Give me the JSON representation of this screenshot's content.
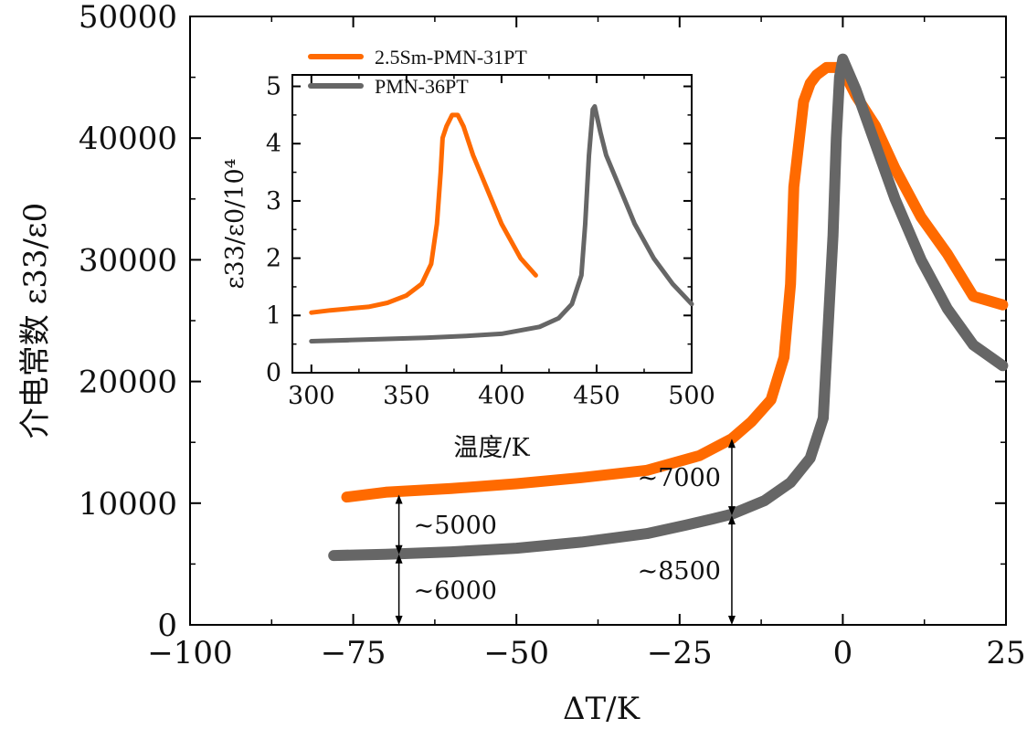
{
  "colors": {
    "sm": "#ff6a00",
    "pmn": "#666666",
    "axis": "#000000"
  },
  "chart_data": [
    {
      "id": "main",
      "type": "line",
      "xlabel": "ΔT/K",
      "ylabel": "介电常数 ε33/ε0",
      "xlim": [
        -100,
        25
      ],
      "ylim": [
        0,
        50000
      ],
      "xticks": [
        -100,
        -75,
        -50,
        -25,
        0,
        25
      ],
      "xtick_labels": [
        "−100",
        "−75",
        "−50",
        "−25",
        "0",
        "25"
      ],
      "yticks": [
        0,
        10000,
        20000,
        30000,
        40000,
        50000
      ],
      "ytick_labels": [
        "0",
        "10000",
        "20000",
        "30000",
        "40000",
        "50000"
      ],
      "series": [
        {
          "name": "2.5Sm-PMN-31PT",
          "color": "#ff6a00",
          "x": [
            -76,
            -70,
            -60,
            -50,
            -40,
            -30,
            -22,
            -17,
            -14,
            -11,
            -9,
            -8,
            -7.5,
            -6,
            -5,
            -4,
            -2.5,
            -1,
            0,
            2,
            5,
            8,
            12,
            16,
            20,
            24.5
          ],
          "y": [
            10500,
            10900,
            11200,
            11600,
            12100,
            12700,
            13900,
            15300,
            16700,
            18500,
            22000,
            28000,
            36000,
            43000,
            44500,
            45200,
            45800,
            45800,
            45600,
            43500,
            41000,
            37500,
            33500,
            30500,
            27000,
            26300
          ]
        },
        {
          "name": "PMN-36PT",
          "color": "#666666",
          "x": [
            -78,
            -70,
            -60,
            -50,
            -40,
            -30,
            -24,
            -20,
            -17,
            -12,
            -8,
            -5,
            -3,
            -1.5,
            -1,
            -0.5,
            0,
            2,
            5,
            8,
            12,
            16,
            20,
            24.5
          ],
          "y": [
            5700,
            5800,
            6000,
            6300,
            6800,
            7500,
            8200,
            8700,
            9100,
            10200,
            11700,
            13700,
            17000,
            32000,
            40000,
            45000,
            46500,
            44000,
            39500,
            35000,
            30000,
            26000,
            23000,
            21300
          ]
        }
      ],
      "annotations": [
        {
          "label": "~5000",
          "x": -68,
          "from": 5800,
          "to": 10700
        },
        {
          "label": "~6000",
          "x": -68,
          "from": 0,
          "to": 5800
        },
        {
          "label": "~7000",
          "x": -17,
          "from": 9000,
          "to": 15300
        },
        {
          "label": "~8500",
          "x": -17,
          "from": 0,
          "to": 9000
        }
      ],
      "legend": {
        "placement": "top-left of plot",
        "entries": [
          "2.5Sm-PMN-31PT",
          "PMN-36PT"
        ]
      }
    },
    {
      "id": "inset",
      "type": "line",
      "xlabel": "温度/K",
      "ylabel": "ε33/ε0/10⁴",
      "xlim": [
        290,
        500
      ],
      "ylim": [
        0,
        5.2
      ],
      "xticks": [
        300,
        350,
        400,
        450,
        500
      ],
      "xtick_labels": [
        "300",
        "350",
        "400",
        "450",
        "500"
      ],
      "yticks": [
        0,
        1,
        2,
        3,
        4,
        5
      ],
      "ytick_labels": [
        "0",
        "1",
        "2",
        "3",
        "4",
        "5"
      ],
      "series": [
        {
          "name": "2.5Sm-PMN-31PT",
          "color": "#ff6a00",
          "x": [
            300,
            310,
            320,
            330,
            340,
            350,
            358,
            363,
            366,
            368,
            369,
            371,
            374,
            377,
            380,
            385,
            390,
            400,
            410,
            418
          ],
          "y": [
            1.05,
            1.09,
            1.12,
            1.15,
            1.22,
            1.35,
            1.55,
            1.9,
            2.6,
            3.5,
            4.1,
            4.3,
            4.5,
            4.5,
            4.3,
            3.8,
            3.4,
            2.6,
            2.0,
            1.7
          ]
        },
        {
          "name": "PMN-36PT",
          "color": "#666666",
          "x": [
            300,
            320,
            340,
            360,
            380,
            400,
            420,
            430,
            437,
            442,
            444,
            446,
            448,
            449,
            452,
            455,
            460,
            470,
            480,
            490,
            500
          ],
          "y": [
            0.55,
            0.57,
            0.59,
            0.61,
            0.64,
            0.68,
            0.8,
            0.95,
            1.2,
            1.7,
            2.6,
            3.8,
            4.6,
            4.65,
            4.2,
            3.8,
            3.4,
            2.6,
            2.0,
            1.55,
            1.2
          ]
        }
      ]
    }
  ]
}
